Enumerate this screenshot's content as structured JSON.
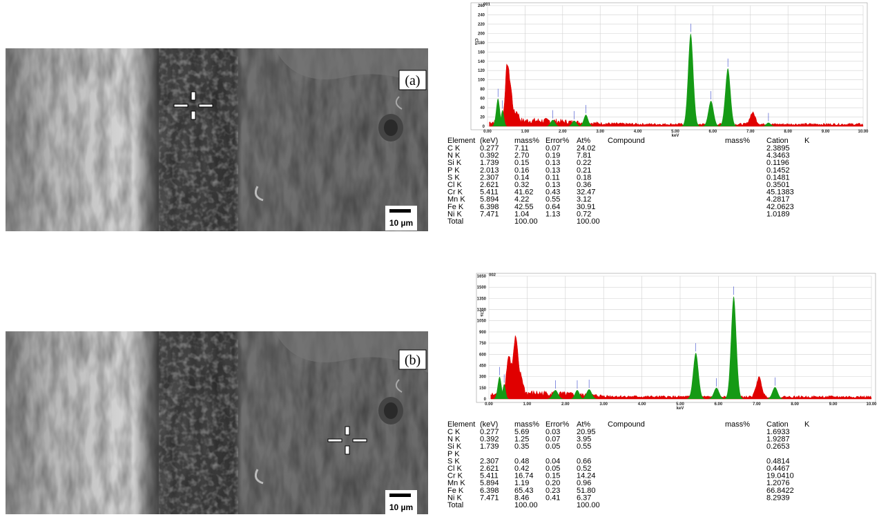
{
  "panels": [
    {
      "label": "(a)",
      "scale_bar": "10 µm",
      "spectrum": {
        "title": "001",
        "x_label": "keV",
        "y_label": "Cts",
        "xticks": [
          "0.00",
          "1.00",
          "2.00",
          "3.00",
          "4.00",
          "5.00",
          "6.00",
          "7.00",
          "8.00",
          "9.00",
          "10.00"
        ],
        "yticks": [
          0,
          20,
          40,
          60,
          80,
          100,
          120,
          140,
          160,
          180,
          200,
          220,
          240,
          260
        ]
      },
      "table": {
        "header": [
          "Element",
          "(keV)",
          "mass%",
          "Error%",
          "At%",
          "Compound",
          "mass%",
          "Cation",
          "K"
        ],
        "rows": [
          [
            "C K",
            "0.277",
            "7.11",
            "0.07",
            "24.02",
            "2.3895"
          ],
          [
            "N K",
            "0.392",
            "2.70",
            "0.19",
            "7.81",
            "4.3463"
          ],
          [
            "Si K",
            "1.739",
            "0.15",
            "0.13",
            "0.22",
            "0.1196"
          ],
          [
            "P K",
            "2.013",
            "0.16",
            "0.13",
            "0.21",
            "0.1452"
          ],
          [
            "S K",
            "2.307",
            "0.14",
            "0.11",
            "0.18",
            "0.1481"
          ],
          [
            "Cl K",
            "2.621",
            "0.32",
            "0.13",
            "0.36",
            "0.3501"
          ],
          [
            "Cr K",
            "5.411",
            "41.62",
            "0.43",
            "32.47",
            "45.1383"
          ],
          [
            "Mn K",
            "5.894",
            "4.22",
            "0.55",
            "3.12",
            "4.2817"
          ],
          [
            "Fe K",
            "6.398",
            "42.55",
            "0.64",
            "30.91",
            "42.0623"
          ],
          [
            "Ni K",
            "7.471",
            "1.04",
            "1.13",
            "0.72",
            "1.0189"
          ],
          [
            "Total",
            null,
            "100.00",
            null,
            "100.00",
            null
          ]
        ]
      }
    },
    {
      "label": "(b)",
      "scale_bar": "10 µm",
      "spectrum": {
        "title": "002",
        "x_label": "keV",
        "y_label": "Cts",
        "xticks": [
          "0.00",
          "1.00",
          "2.00",
          "3.00",
          "4.00",
          "5.00",
          "6.00",
          "7.00",
          "8.00",
          "9.00",
          "10.00"
        ],
        "yticks": [
          0,
          150,
          300,
          450,
          600,
          750,
          900,
          1050,
          1200,
          1350,
          1500,
          1650
        ]
      },
      "table": {
        "header": [
          "Element",
          "(keV)",
          "mass%",
          "Error%",
          "At%",
          "Compound",
          "mass%",
          "Cation",
          "K"
        ],
        "rows": [
          [
            "C K",
            "0.277",
            "5.69",
            "0.03",
            "20.95",
            "1.6933"
          ],
          [
            "N K",
            "0.392",
            "1.25",
            "0.07",
            "3.95",
            "1.9287"
          ],
          [
            "Si K",
            "1.739",
            "0.35",
            "0.05",
            "0.55",
            "0.2653"
          ],
          [
            "P K",
            null,
            null,
            null,
            null,
            null
          ],
          [
            "S K",
            "2.307",
            "0.48",
            "0.04",
            "0.66",
            "0.4814"
          ],
          [
            "Cl K",
            "2.621",
            "0.42",
            "0.05",
            "0.52",
            "0.4467"
          ],
          [
            "Cr K",
            "5.411",
            "16.74",
            "0.15",
            "14.24",
            "19.0410"
          ],
          [
            "Mn K",
            "5.894",
            "1.19",
            "0.20",
            "0.96",
            "1.2076"
          ],
          [
            "Fe K",
            "6.398",
            "65.43",
            "0.23",
            "51.80",
            "66.8422"
          ],
          [
            "Ni K",
            "7.471",
            "8.46",
            "0.41",
            "6.37",
            "8.2939"
          ],
          [
            "Total",
            null,
            "100.00",
            null,
            "100.00",
            null
          ]
        ]
      }
    }
  ]
}
